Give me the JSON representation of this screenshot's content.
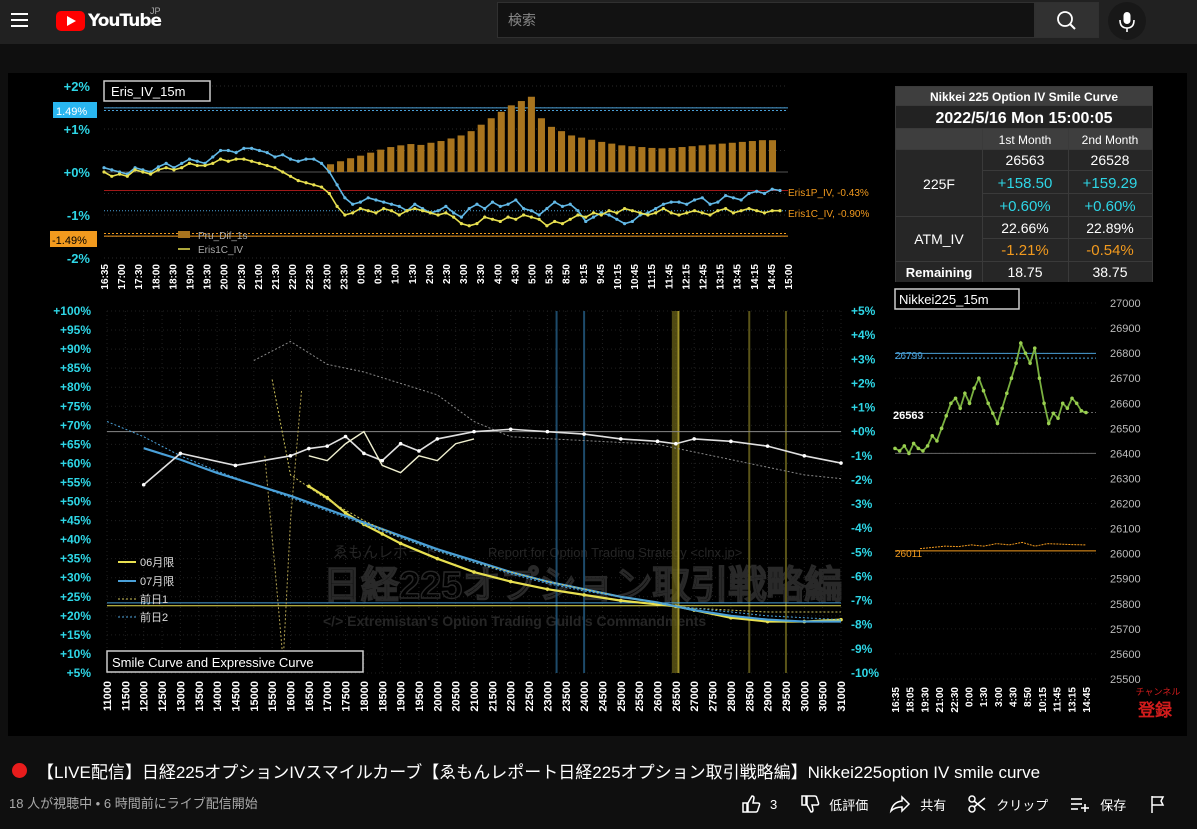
{
  "header": {
    "region": "JP",
    "logo_text": "YouTube",
    "search_placeholder": "検索"
  },
  "video": {
    "title": "【LIVE配信】日経225オプションIVスマイルカーブ【ゑもんレポート日経225オプション取引戦略編】Nikkei225option IV smile curve",
    "meta": "18 人が視聴中 • 6 時間前にライブ配信開始",
    "like_count": "3",
    "dislike_label": "低評価",
    "share_label": "共有",
    "clip_label": "クリップ",
    "save_label": "保存",
    "subscribe_small": "チャンネル",
    "subscribe_label": "登録"
  },
  "colors": {
    "bg": "#0f0f0f",
    "topbar": "#212121",
    "cyan": "#2ed6e6",
    "gold": "#c08a1e",
    "yellow": "#e8e050",
    "blue": "#4aa0d8",
    "green": "#7ab040",
    "live_red": "#e81c1c"
  },
  "overlay": {
    "watermark_main": "日経225オプション取引戦略編",
    "watermark_top": "ゑもんレポート",
    "watermark_sub": "Report for Option Trading Strategy <clnx.jp>",
    "watermark_bottom": "</> Extremistan's Option Trading Guild's Commandments"
  },
  "iv_table": {
    "title": "Nikkei 225 Option IV Smile Curve",
    "datetime": "2022/5/16 Mon 15:00:05",
    "col1": "1st Month",
    "col2": "2nd Month",
    "f_label": "225F",
    "f_price": [
      "26563",
      "26528"
    ],
    "f_change": [
      "+158.50",
      "+159.29"
    ],
    "f_pct": [
      "+0.60%",
      "+0.60%"
    ],
    "atm_label": "ATM_IV",
    "atm_iv": [
      "22.66%",
      "22.89%"
    ],
    "atm_change": [
      "-1.21%",
      "-0.54%"
    ],
    "rem_label": "Remaining",
    "remaining": [
      "18.75",
      "38.75"
    ]
  },
  "chart_data": [
    {
      "type": "bar",
      "title": "Eris_IV_15m",
      "ylim": [
        -2,
        2
      ],
      "yticks": [
        "+2%",
        "+1%",
        "+0%",
        "-1%",
        "-2%"
      ],
      "ref_upper": "1.49%",
      "ref_lower": "-1.49%",
      "series": [
        {
          "name": "Pru_Dif_1s",
          "kind": "bar",
          "values": [
            0.18,
            0.25,
            0.32,
            0.38,
            0.45,
            0.52,
            0.58,
            0.62,
            0.65,
            0.63,
            0.68,
            0.72,
            0.78,
            0.85,
            0.95,
            1.1,
            1.25,
            1.4,
            1.55,
            1.65,
            1.75,
            1.25,
            1.05,
            0.95,
            0.85,
            0.8,
            0.75,
            0.7,
            0.66,
            0.62,
            0.6,
            0.58,
            0.56,
            0.55,
            0.56,
            0.58,
            0.6,
            0.62,
            0.64,
            0.66,
            0.68,
            0.7,
            0.72,
            0.74,
            0.74
          ]
        },
        {
          "name": "Eris1P_IV",
          "kind": "line",
          "end_label": "Eris1P_IV, -0.43%",
          "values": [
            0.1,
            0.05,
            0.0,
            -0.05,
            0.1,
            0.05,
            0.0,
            0.12,
            0.2,
            0.1,
            0.2,
            0.3,
            0.25,
            0.2,
            0.35,
            0.5,
            0.5,
            0.45,
            0.55,
            0.55,
            0.5,
            0.45,
            0.35,
            0.4,
            0.3,
            0.25,
            0.3,
            0.3,
            0.2,
            0.0,
            -0.3,
            -0.6,
            -0.75,
            -0.7,
            -0.6,
            -0.65,
            -0.7,
            -0.75,
            -0.8,
            -0.9,
            -0.75,
            -0.85,
            -0.95,
            -0.9,
            -0.8,
            -0.95,
            -1.05,
            -0.85,
            -0.75,
            -0.85,
            -0.7,
            -0.8,
            -0.75,
            -0.65,
            -0.85,
            -0.9,
            -1.0,
            -0.85,
            -0.7,
            -0.8,
            -0.75,
            -0.9,
            -1.15,
            -1.05,
            -0.95,
            -1.0,
            -1.1,
            -1.2,
            -1.15,
            -1.0,
            -0.95,
            -0.85,
            -0.75,
            -0.7,
            -0.7,
            -0.75,
            -0.65,
            -0.6,
            -0.75,
            -0.7,
            -0.55,
            -0.6,
            -0.65,
            -0.5,
            -0.45,
            -0.5,
            -0.4,
            -0.43
          ]
        },
        {
          "name": "Eris1C_IV",
          "kind": "line",
          "end_label": "Eris1C_IV, -0.90%",
          "values": [
            0.0,
            -0.1,
            -0.05,
            -0.1,
            0.05,
            0.0,
            -0.05,
            0.05,
            0.1,
            0.05,
            0.1,
            0.2,
            0.15,
            0.15,
            0.2,
            0.3,
            0.25,
            0.3,
            0.3,
            0.25,
            0.2,
            0.15,
            0.1,
            0.0,
            -0.1,
            -0.2,
            -0.25,
            -0.3,
            -0.35,
            -0.5,
            -0.8,
            -1.0,
            -0.95,
            -0.85,
            -0.9,
            -0.95,
            -0.85,
            -0.9,
            -1.0,
            -0.9,
            -0.85,
            -0.9,
            -0.95,
            -1.0,
            -0.95,
            -1.05,
            -1.2,
            -1.25,
            -1.2,
            -1.05,
            -1.1,
            -1.15,
            -1.05,
            -1.1,
            -1.0,
            -1.05,
            -1.1,
            -1.25,
            -1.15,
            -1.2,
            -1.1,
            -1.0,
            -1.05,
            -0.95,
            -1.0,
            -0.9,
            -0.95,
            -0.85,
            -0.9,
            -0.95,
            -1.0,
            -0.95,
            -0.85,
            -0.95,
            -1.0,
            -0.95,
            -0.9,
            -0.95,
            -1.0,
            -0.9,
            -0.85,
            -0.95,
            -0.9,
            -0.85,
            -0.9,
            -0.95,
            -0.9,
            -0.9
          ]
        }
      ],
      "x_labels": [
        "16:35",
        "17:00",
        "17:30",
        "18:00",
        "18:30",
        "19:00",
        "19:30",
        "20:00",
        "20:30",
        "21:00",
        "21:30",
        "22:00",
        "22:30",
        "23:00",
        "23:30",
        "0:00",
        "0:30",
        "1:00",
        "1:30",
        "2:00",
        "2:30",
        "3:00",
        "3:30",
        "4:00",
        "4:30",
        "5:00",
        "5:30",
        "8:50",
        "9:15",
        "9:45",
        "10:15",
        "10:45",
        "11:15",
        "11:45",
        "12:15",
        "12:45",
        "13:15",
        "13:45",
        "14:15",
        "14:45",
        "15:00"
      ]
    },
    {
      "type": "line",
      "title": "Smile Curve and Expressive Curve",
      "xlim": [
        11000,
        31000
      ],
      "ylim_left": [
        5,
        100
      ],
      "ylim_right": [
        -10,
        5
      ],
      "x_labels": [
        "11000",
        "11500",
        "12000",
        "12500",
        "13000",
        "13500",
        "14000",
        "14500",
        "15000",
        "15500",
        "16000",
        "16500",
        "17000",
        "17500",
        "18000",
        "18500",
        "19000",
        "19500",
        "20000",
        "20500",
        "21000",
        "21500",
        "22000",
        "22500",
        "23000",
        "23500",
        "24000",
        "24500",
        "25000",
        "25500",
        "26000",
        "26500",
        "27000",
        "27500",
        "28000",
        "28500",
        "29000",
        "29500",
        "30000",
        "30500",
        "31000"
      ],
      "y_left_labels": [
        "+100%",
        "+95%",
        "+90%",
        "+85%",
        "+80%",
        "+75%",
        "+70%",
        "+65%",
        "+60%",
        "+55%",
        "+50%",
        "+45%",
        "+40%",
        "+35%",
        "+30%",
        "+25%",
        "+20%",
        "+15%",
        "+10%",
        "+5%"
      ],
      "y_right_labels": [
        "+5%",
        "+4%",
        "+3%",
        "+2%",
        "+1%",
        "+0%",
        "-1%",
        "-2%",
        "-3%",
        "-4%",
        "-5%",
        "-6%",
        "-7%",
        "-8%",
        "-9%",
        "-10%"
      ],
      "series": [
        {
          "name": "06月限",
          "x": [
            16500,
            17000,
            17500,
            18000,
            18500,
            19000,
            20000,
            21000,
            22000,
            23000,
            24000,
            25000,
            26000,
            26500,
            27000,
            28000,
            29000,
            30000,
            31000
          ],
          "y": [
            54,
            51,
            47,
            44,
            41.5,
            39,
            35,
            31.5,
            29,
            27,
            25.5,
            24,
            23,
            22.5,
            21.5,
            19.5,
            18.5,
            18.5,
            19
          ]
        },
        {
          "name": "07月限",
          "x": [
            12000,
            13000,
            14000,
            15000,
            16000,
            17000,
            18000,
            19000,
            20000,
            21000,
            22000,
            23000,
            24000,
            25000,
            26000,
            26500,
            27000,
            28000,
            29000,
            30000,
            31000
          ],
          "y": [
            64,
            61,
            57.5,
            54.5,
            51.5,
            48,
            44.5,
            41,
            37.5,
            34.5,
            31.5,
            29,
            27,
            25,
            23.5,
            22.5,
            21.5,
            20,
            19,
            18.5,
            18.5
          ]
        },
        {
          "name": "前日1",
          "x": [
            15500,
            16000,
            17000,
            18000,
            19000,
            20000,
            21000,
            22000,
            23000,
            24000,
            25000,
            26000,
            26500,
            27000,
            28000,
            29000,
            30000,
            31000
          ],
          "y": [
            82,
            57,
            50.5,
            45,
            40.5,
            37,
            34,
            31.5,
            29,
            27,
            25,
            23.5,
            22.5,
            22,
            21.5,
            21,
            21,
            21
          ]
        },
        {
          "name": "前日2",
          "x": [
            11000,
            12000,
            13000,
            14000,
            15000,
            16000,
            17000,
            18000,
            19000,
            20000,
            21000,
            22000,
            23000,
            24000,
            25000,
            26000,
            26500,
            27000,
            28000,
            29000,
            30000,
            31000
          ],
          "y": [
            71,
            67,
            62,
            58,
            54.5,
            51,
            47.5,
            44,
            40.5,
            37,
            34,
            31,
            28.5,
            26.5,
            25,
            23.5,
            22.5,
            22,
            21,
            20,
            19.5,
            19
          ]
        }
      ],
      "expressive_curves": [
        {
          "axis": "right",
          "x": [
            12000,
            13000,
            14500,
            16000,
            16500,
            17000,
            17500,
            18000,
            18500,
            19000,
            19500,
            20000,
            21000,
            22000,
            23000,
            24000,
            25000,
            26000,
            26500,
            27000,
            28000,
            29000,
            30000,
            31000
          ],
          "y": [
            -2.2,
            -0.9,
            -1.4,
            -1.0,
            -0.7,
            -0.6,
            -0.2,
            -0.9,
            -1.2,
            -0.5,
            -0.8,
            -0.3,
            0.0,
            0.1,
            0.0,
            -0.1,
            -0.3,
            -0.4,
            -0.5,
            -0.3,
            -0.4,
            -0.6,
            -1.0,
            -1.3
          ]
        },
        {
          "axis": "right",
          "x": [
            16500,
            17000,
            17500,
            18000,
            18500,
            19000,
            19500,
            20000,
            20500,
            21000
          ],
          "y": [
            -1.0,
            -1.2,
            -0.5,
            0.0,
            -1.4,
            -1.7,
            -1.0,
            -1.2,
            -0.5,
            -0.3
          ]
        }
      ]
    },
    {
      "type": "line",
      "title": "Nikkei225_15m",
      "ylim": [
        25500,
        27000
      ],
      "y_labels": [
        "27000",
        "26900",
        "26800",
        "26700",
        "26600",
        "26500",
        "26400",
        "26300",
        "26200",
        "26100",
        "26000",
        "25900",
        "25800",
        "25700",
        "25600",
        "25500"
      ],
      "x_labels": [
        "16:35",
        "18:05",
        "19:30",
        "21:00",
        "22:30",
        "0:00",
        "1:30",
        "3:00",
        "4:30",
        "8:50",
        "10:15",
        "11:45",
        "13:15",
        "14:45"
      ],
      "ref_labels": {
        "upper": "26799",
        "current": "26563",
        "lower": "26011"
      },
      "series": [
        {
          "name": "Nikkei225",
          "values": [
            26420,
            26410,
            26430,
            26400,
            26440,
            26420,
            26410,
            26430,
            26470,
            26450,
            26500,
            26550,
            26600,
            26620,
            26580,
            26640,
            26600,
            26660,
            26700,
            26650,
            26600,
            26560,
            26520,
            26580,
            26640,
            26700,
            26760,
            26840,
            26800,
            26760,
            26820,
            26700,
            26600,
            26520,
            26560,
            26540,
            26600,
            26580,
            26620,
            26600,
            26570,
            26563
          ]
        }
      ]
    }
  ],
  "legend": [
    "06月限",
    "07月限",
    "前日1",
    "前日2"
  ]
}
